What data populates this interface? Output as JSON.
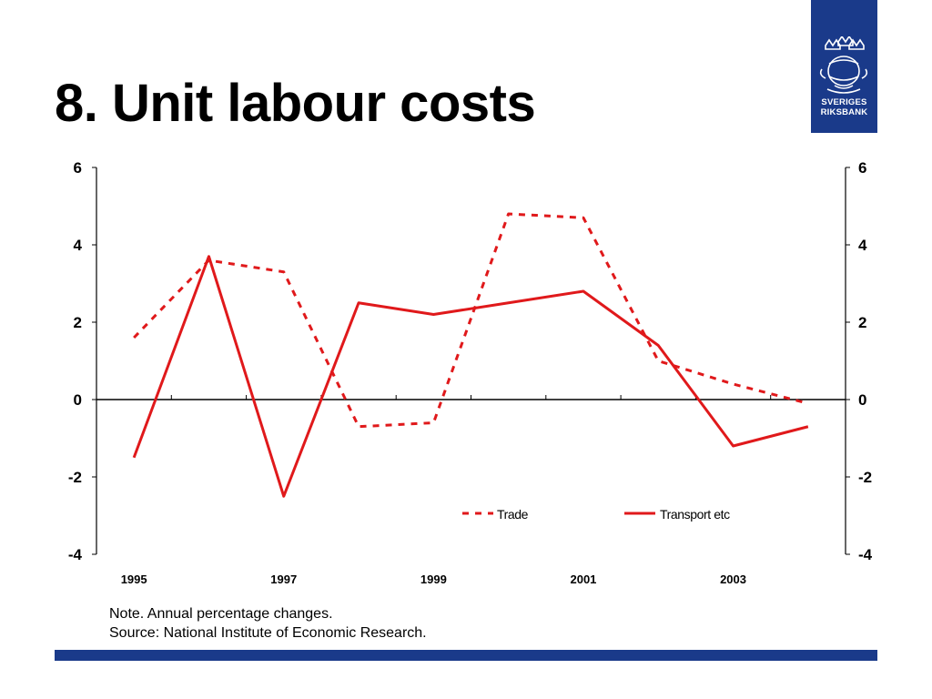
{
  "slide": {
    "title": "8. Unit labour costs",
    "note": "Note. Annual percentage changes.",
    "source": "Source: National Institute of Economic Research."
  },
  "logo": {
    "line1": "SVERIGES",
    "line2": "RIKSBANK",
    "icon": "crowned-coat-of-arms-icon",
    "color": "#1a3a8a"
  },
  "chart_data": {
    "type": "line",
    "x": [
      1995,
      1996,
      1997,
      1998,
      1999,
      2000,
      2001,
      2002,
      2003,
      2004
    ],
    "x_tick_labels": [
      "1995",
      "1997",
      "1999",
      "2001",
      "2003"
    ],
    "ylim": [
      -4,
      6
    ],
    "y_ticks": [
      -4,
      -2,
      0,
      2,
      4,
      6
    ],
    "y_tick_labels": [
      "-4",
      "-2",
      "0",
      "2",
      "4",
      "6"
    ],
    "secondary_y_axis": true,
    "grid": false,
    "legend_position": "lower-right",
    "series": [
      {
        "name": "Trade",
        "style": "dashed",
        "color": "#e0191b",
        "values": [
          1.6,
          3.6,
          3.3,
          -0.7,
          -0.6,
          4.8,
          4.7,
          1.0,
          0.4,
          -0.1
        ]
      },
      {
        "name": "Transport etc",
        "style": "solid",
        "color": "#e0191b",
        "values": [
          -1.5,
          3.7,
          -2.5,
          2.5,
          2.2,
          2.5,
          2.8,
          1.4,
          -1.2,
          -0.7
        ]
      }
    ]
  }
}
